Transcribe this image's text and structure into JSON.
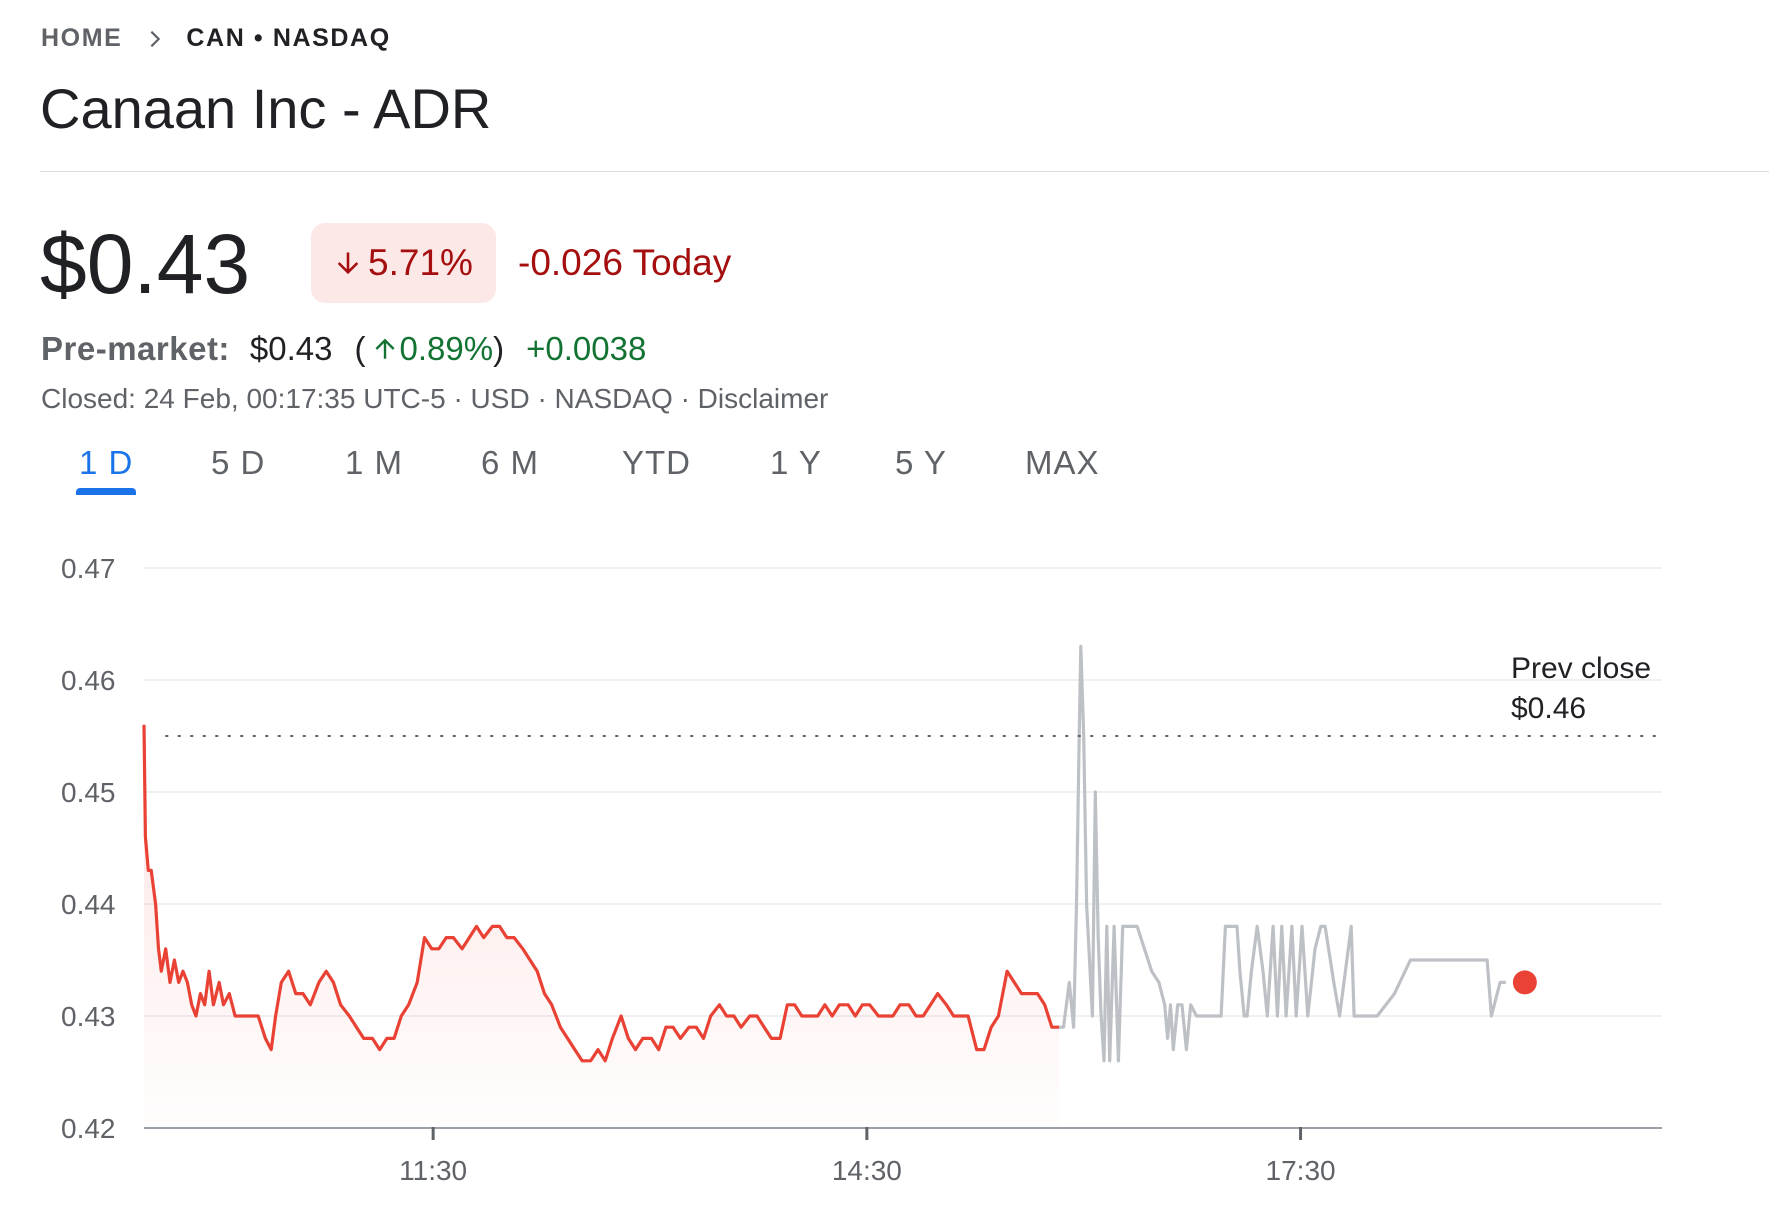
{
  "breadcrumb": {
    "home": "HOME",
    "symbol": "CAN • NASDAQ"
  },
  "title": "Canaan Inc - ADR",
  "quote": {
    "price": "$0.43",
    "change_percent": "5.71%",
    "change_today": "-0.026 Today",
    "direction": "down",
    "negative_color": "#a50e0e",
    "positive_color": "#137333"
  },
  "premarket": {
    "label": "Pre-market:",
    "price": "$0.43",
    "open_paren": "(",
    "percent": "0.89%",
    "close_paren": ")",
    "change": "+0.0038"
  },
  "status_line": "Closed: 24 Feb, 00:17:35 UTC-5 · USD · NASDAQ · Disclaimer",
  "tabs": [
    {
      "label": "1 D",
      "active": true
    },
    {
      "label": "5 D",
      "active": false
    },
    {
      "label": "1 M",
      "active": false
    },
    {
      "label": "6 M",
      "active": false
    },
    {
      "label": "YTD",
      "active": false
    },
    {
      "label": "1 Y",
      "active": false
    },
    {
      "label": "5 Y",
      "active": false
    },
    {
      "label": "MAX",
      "active": false
    }
  ],
  "icons": {
    "breadcrumb_separator": "chevron-right-icon",
    "change_direction": "arrow-down-icon",
    "premarket_direction": "arrow-up-icon"
  },
  "chart_data": {
    "type": "line",
    "ylim": [
      0.42,
      0.47
    ],
    "y_ticks": [
      "0.47",
      "0.46",
      "0.45",
      "0.44",
      "0.43",
      "0.42"
    ],
    "x_range_hours": [
      9.5,
      20.0
    ],
    "x_ticks": [
      {
        "label": "11:30",
        "hour": 11.5
      },
      {
        "label": "14:30",
        "hour": 14.5
      },
      {
        "label": "17:30",
        "hour": 17.5
      }
    ],
    "prev_close": {
      "label_line1": "Prev close",
      "label_line2": "$0.46",
      "value": 0.455
    },
    "grid": true,
    "colors": {
      "session": "#e94235",
      "after_hours": "#bdc1c6",
      "grid": "#ebebeb",
      "axis": "#9aa0a6",
      "endpoint": "#ea4335"
    },
    "series": [
      {
        "session": "regular",
        "points": [
          [
            9.5,
            0.456
          ],
          [
            9.51,
            0.446
          ],
          [
            9.53,
            0.443
          ],
          [
            9.55,
            0.443
          ],
          [
            9.58,
            0.44
          ],
          [
            9.6,
            0.436
          ],
          [
            9.62,
            0.434
          ],
          [
            9.65,
            0.436
          ],
          [
            9.68,
            0.433
          ],
          [
            9.71,
            0.435
          ],
          [
            9.74,
            0.433
          ],
          [
            9.77,
            0.434
          ],
          [
            9.8,
            0.433
          ],
          [
            9.83,
            0.431
          ],
          [
            9.86,
            0.43
          ],
          [
            9.89,
            0.432
          ],
          [
            9.92,
            0.431
          ],
          [
            9.95,
            0.434
          ],
          [
            9.98,
            0.431
          ],
          [
            10.02,
            0.433
          ],
          [
            10.05,
            0.431
          ],
          [
            10.09,
            0.432
          ],
          [
            10.13,
            0.43
          ],
          [
            10.18,
            0.43
          ],
          [
            10.23,
            0.43
          ],
          [
            10.29,
            0.43
          ],
          [
            10.34,
            0.428
          ],
          [
            10.38,
            0.427
          ],
          [
            10.41,
            0.43
          ],
          [
            10.45,
            0.433
          ],
          [
            10.5,
            0.434
          ],
          [
            10.55,
            0.432
          ],
          [
            10.6,
            0.432
          ],
          [
            10.65,
            0.431
          ],
          [
            10.71,
            0.433
          ],
          [
            10.76,
            0.434
          ],
          [
            10.81,
            0.433
          ],
          [
            10.86,
            0.431
          ],
          [
            10.92,
            0.43
          ],
          [
            10.97,
            0.429
          ],
          [
            11.02,
            0.428
          ],
          [
            11.08,
            0.428
          ],
          [
            11.13,
            0.427
          ],
          [
            11.18,
            0.428
          ],
          [
            11.23,
            0.428
          ],
          [
            11.28,
            0.43
          ],
          [
            11.33,
            0.431
          ],
          [
            11.39,
            0.433
          ],
          [
            11.44,
            0.437
          ],
          [
            11.49,
            0.436
          ],
          [
            11.54,
            0.436
          ],
          [
            11.59,
            0.437
          ],
          [
            11.64,
            0.437
          ],
          [
            11.7,
            0.436
          ],
          [
            11.75,
            0.437
          ],
          [
            11.8,
            0.438
          ],
          [
            11.85,
            0.437
          ],
          [
            11.91,
            0.438
          ],
          [
            11.96,
            0.438
          ],
          [
            12.01,
            0.437
          ],
          [
            12.06,
            0.437
          ],
          [
            12.12,
            0.436
          ],
          [
            12.17,
            0.435
          ],
          [
            12.22,
            0.434
          ],
          [
            12.27,
            0.432
          ],
          [
            12.32,
            0.431
          ],
          [
            12.38,
            0.429
          ],
          [
            12.43,
            0.428
          ],
          [
            12.48,
            0.427
          ],
          [
            12.53,
            0.426
          ],
          [
            12.59,
            0.426
          ],
          [
            12.64,
            0.427
          ],
          [
            12.69,
            0.426
          ],
          [
            12.74,
            0.428
          ],
          [
            12.8,
            0.43
          ],
          [
            12.85,
            0.428
          ],
          [
            12.9,
            0.427
          ],
          [
            12.95,
            0.428
          ],
          [
            13.01,
            0.428
          ],
          [
            13.06,
            0.427
          ],
          [
            13.11,
            0.429
          ],
          [
            13.16,
            0.429
          ],
          [
            13.21,
            0.428
          ],
          [
            13.27,
            0.429
          ],
          [
            13.32,
            0.429
          ],
          [
            13.37,
            0.428
          ],
          [
            13.42,
            0.43
          ],
          [
            13.48,
            0.431
          ],
          [
            13.53,
            0.43
          ],
          [
            13.58,
            0.43
          ],
          [
            13.63,
            0.429
          ],
          [
            13.69,
            0.43
          ],
          [
            13.74,
            0.43
          ],
          [
            13.79,
            0.429
          ],
          [
            13.84,
            0.428
          ],
          [
            13.9,
            0.428
          ],
          [
            13.95,
            0.431
          ],
          [
            14.0,
            0.431
          ],
          [
            14.05,
            0.43
          ],
          [
            14.1,
            0.43
          ],
          [
            14.16,
            0.43
          ],
          [
            14.21,
            0.431
          ],
          [
            14.26,
            0.43
          ],
          [
            14.31,
            0.431
          ],
          [
            14.37,
            0.431
          ],
          [
            14.42,
            0.43
          ],
          [
            14.47,
            0.431
          ],
          [
            14.52,
            0.431
          ],
          [
            14.58,
            0.43
          ],
          [
            14.63,
            0.43
          ],
          [
            14.68,
            0.43
          ],
          [
            14.73,
            0.431
          ],
          [
            14.79,
            0.431
          ],
          [
            14.84,
            0.43
          ],
          [
            14.89,
            0.43
          ],
          [
            14.94,
            0.431
          ],
          [
            14.99,
            0.432
          ],
          [
            15.05,
            0.431
          ],
          [
            15.1,
            0.43
          ],
          [
            15.15,
            0.43
          ],
          [
            15.2,
            0.43
          ],
          [
            15.26,
            0.427
          ],
          [
            15.31,
            0.427
          ],
          [
            15.36,
            0.429
          ],
          [
            15.41,
            0.43
          ],
          [
            15.47,
            0.434
          ],
          [
            15.52,
            0.433
          ],
          [
            15.57,
            0.432
          ],
          [
            15.62,
            0.432
          ],
          [
            15.68,
            0.432
          ],
          [
            15.73,
            0.431
          ],
          [
            15.78,
            0.429
          ],
          [
            15.83,
            0.429
          ]
        ]
      },
      {
        "session": "after-hours",
        "points": [
          [
            15.83,
            0.429
          ],
          [
            15.86,
            0.429
          ],
          [
            15.9,
            0.433
          ],
          [
            15.93,
            0.429
          ],
          [
            15.95,
            0.44
          ],
          [
            15.97,
            0.456
          ],
          [
            15.98,
            0.463
          ],
          [
            16.0,
            0.455
          ],
          [
            16.02,
            0.44
          ],
          [
            16.04,
            0.435
          ],
          [
            16.06,
            0.43
          ],
          [
            16.08,
            0.45
          ],
          [
            16.1,
            0.437
          ],
          [
            16.12,
            0.43
          ],
          [
            16.14,
            0.426
          ],
          [
            16.16,
            0.438
          ],
          [
            16.18,
            0.426
          ],
          [
            16.21,
            0.438
          ],
          [
            16.24,
            0.426
          ],
          [
            16.27,
            0.438
          ],
          [
            16.32,
            0.438
          ],
          [
            16.37,
            0.438
          ],
          [
            16.42,
            0.436
          ],
          [
            16.47,
            0.434
          ],
          [
            16.52,
            0.433
          ],
          [
            16.56,
            0.431
          ],
          [
            16.58,
            0.428
          ],
          [
            16.6,
            0.431
          ],
          [
            16.62,
            0.427
          ],
          [
            16.65,
            0.431
          ],
          [
            16.68,
            0.431
          ],
          [
            16.71,
            0.427
          ],
          [
            16.74,
            0.431
          ],
          [
            16.78,
            0.43
          ],
          [
            16.84,
            0.43
          ],
          [
            16.9,
            0.43
          ],
          [
            16.95,
            0.43
          ],
          [
            16.98,
            0.438
          ],
          [
            17.02,
            0.438
          ],
          [
            17.06,
            0.438
          ],
          [
            17.08,
            0.434
          ],
          [
            17.11,
            0.43
          ],
          [
            17.13,
            0.43
          ],
          [
            17.16,
            0.434
          ],
          [
            17.2,
            0.438
          ],
          [
            17.24,
            0.434
          ],
          [
            17.27,
            0.43
          ],
          [
            17.31,
            0.438
          ],
          [
            17.34,
            0.43
          ],
          [
            17.37,
            0.438
          ],
          [
            17.4,
            0.43
          ],
          [
            17.44,
            0.438
          ],
          [
            17.47,
            0.43
          ],
          [
            17.51,
            0.438
          ],
          [
            17.55,
            0.43
          ],
          [
            17.6,
            0.436
          ],
          [
            17.64,
            0.438
          ],
          [
            17.67,
            0.438
          ],
          [
            17.73,
            0.433
          ],
          [
            17.77,
            0.43
          ],
          [
            17.81,
            0.434
          ],
          [
            17.85,
            0.438
          ],
          [
            17.87,
            0.43
          ],
          [
            17.91,
            0.43
          ],
          [
            18.03,
            0.43
          ],
          [
            18.15,
            0.432
          ],
          [
            18.26,
            0.435
          ],
          [
            18.35,
            0.435
          ],
          [
            18.5,
            0.435
          ],
          [
            18.7,
            0.435
          ],
          [
            18.79,
            0.435
          ],
          [
            18.82,
            0.43
          ],
          [
            18.88,
            0.433
          ],
          [
            18.92,
            0.433
          ]
        ]
      }
    ]
  }
}
